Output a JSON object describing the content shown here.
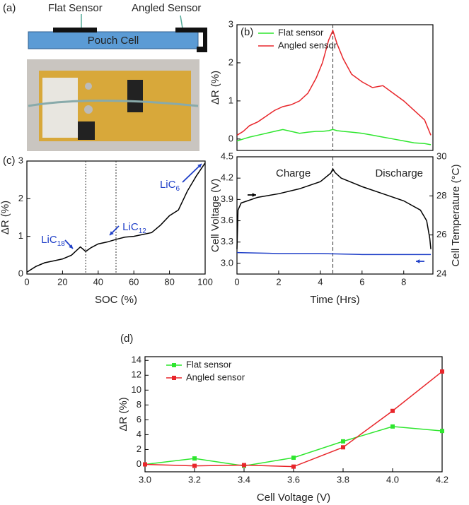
{
  "diagram": {
    "panel_label": "(a)",
    "flat_sensor": "Flat Sensor",
    "angled_sensor": "Angled Sensor",
    "pouch_cell": "Pouch Cell"
  },
  "chart_data": [
    {
      "type": "line",
      "panel_label": "(b)",
      "ylabel": "ΔR (%)",
      "xlim": [
        0,
        9.4
      ],
      "ylim": [
        -0.3,
        3
      ],
      "yticks": [
        0,
        1,
        2,
        3
      ],
      "reference_lines": [
        4.6
      ],
      "legend": "upper left",
      "x": [
        0,
        0.3,
        0.6,
        1.0,
        1.4,
        1.8,
        2.2,
        2.6,
        3.0,
        3.4,
        3.8,
        4.1,
        4.4,
        4.6,
        4.8,
        5.1,
        5.5,
        6.0,
        6.5,
        7.0,
        7.5,
        8.0,
        8.5,
        9.0,
        9.3
      ],
      "series": [
        {
          "name": "Flat sensor",
          "color": "#2ee62e",
          "values": [
            -0.05,
            0,
            0.05,
            0.1,
            0.15,
            0.2,
            0.25,
            0.2,
            0.15,
            0.18,
            0.2,
            0.2,
            0.22,
            0.25,
            0.22,
            0.2,
            0.18,
            0.15,
            0.1,
            0.05,
            0.0,
            -0.05,
            -0.1,
            -0.12,
            -0.15
          ]
        },
        {
          "name": "Angled sensor",
          "color": "#e8262b",
          "values": [
            0.1,
            0.2,
            0.35,
            0.45,
            0.6,
            0.75,
            0.85,
            0.9,
            1.0,
            1.2,
            1.6,
            2.0,
            2.6,
            2.85,
            2.5,
            2.1,
            1.7,
            1.5,
            1.35,
            1.4,
            1.2,
            1.0,
            0.75,
            0.5,
            0.1
          ]
        }
      ]
    },
    {
      "type": "line",
      "xlabel": "Time (Hrs)",
      "ylabel": "Cell Voltage (V)",
      "y2label": "Cell Temperature (°C)",
      "xlim": [
        0,
        9.4
      ],
      "xticks": [
        0,
        2,
        4,
        6,
        8
      ],
      "ylim": [
        2.85,
        4.5
      ],
      "yticks": [
        {
          "value": 3.0,
          "label": "3.0"
        },
        3.3,
        3.6,
        3.9,
        4.2,
        4.5
      ],
      "y2lim": [
        24,
        30
      ],
      "y2ticks": [
        24,
        26,
        28,
        30
      ],
      "reference_lines": [
        4.6
      ],
      "annotations": [
        {
          "text": "Charge"
        },
        {
          "text": "Discharge"
        }
      ],
      "series": [
        {
          "color": "#000000",
          "x": [
            0,
            0.05,
            0.2,
            0.5,
            1,
            2,
            3,
            4,
            4.5,
            4.6,
            4.7,
            5,
            6,
            7,
            8,
            8.8,
            9.1,
            9.25,
            9.3
          ],
          "values": [
            3.2,
            3.75,
            3.85,
            3.88,
            3.93,
            3.98,
            4.05,
            4.15,
            4.27,
            4.33,
            4.28,
            4.2,
            4.08,
            3.98,
            3.88,
            3.75,
            3.6,
            3.35,
            3.2
          ]
        },
        {
          "color": "#1f3fc8",
          "axis": "y2",
          "x": [
            0,
            2,
            4,
            6,
            8,
            9.3
          ],
          "values": [
            25.1,
            25.05,
            25.05,
            25.0,
            25.0,
            25.0
          ]
        }
      ]
    },
    {
      "type": "line",
      "panel_label": "(c)",
      "xlabel": "SOC (%)",
      "ylabel": "ΔR (%)",
      "xlim": [
        0,
        100
      ],
      "xticks": [
        0,
        20,
        40,
        60,
        80,
        100
      ],
      "ylim": [
        0,
        3
      ],
      "yticks": [
        0,
        1,
        2,
        3
      ],
      "reference_lines": [
        33,
        50
      ],
      "annotations": [
        {
          "text": "LiC",
          "sub": "18"
        },
        {
          "text": "LiC",
          "sub": "12"
        },
        {
          "text": "LiC",
          "sub": "6"
        }
      ],
      "series": [
        {
          "color": "#000000",
          "x": [
            0,
            5,
            10,
            15,
            20,
            25,
            30,
            33,
            36,
            40,
            45,
            50,
            55,
            60,
            65,
            70,
            75,
            80,
            85,
            90,
            95,
            100
          ],
          "values": [
            0.05,
            0.2,
            0.3,
            0.35,
            0.4,
            0.5,
            0.72,
            0.6,
            0.7,
            0.8,
            0.85,
            0.92,
            0.98,
            1.0,
            1.05,
            1.1,
            1.3,
            1.55,
            1.7,
            2.2,
            2.6,
            2.95
          ]
        }
      ]
    },
    {
      "type": "line",
      "panel_label": "(d)",
      "xlabel": "Cell Voltage (V)",
      "ylabel": "ΔR (%)",
      "xlim": [
        3.0,
        4.2
      ],
      "xticks": [
        {
          "value": 3.0,
          "label": "3.0"
        },
        3.2,
        3.4,
        3.6,
        3.8,
        {
          "value": 4.0,
          "label": "4.0"
        },
        4.2
      ],
      "ylim": [
        -1,
        14.5
      ],
      "yticks": [
        0,
        2,
        4,
        6,
        8,
        10,
        12,
        14
      ],
      "markers": true,
      "legend": "upper left",
      "x": [
        3.0,
        3.2,
        3.4,
        3.6,
        3.8,
        4.0,
        4.2
      ],
      "series": [
        {
          "name": "Flat sensor",
          "color": "#2ee62e",
          "values": [
            0,
            0.8,
            -0.2,
            0.9,
            3.1,
            5.1,
            4.5
          ]
        },
        {
          "name": "Angled sensor",
          "color": "#e8262b",
          "values": [
            0,
            -0.2,
            -0.1,
            -0.3,
            2.3,
            7.2,
            12.5
          ]
        }
      ]
    }
  ]
}
